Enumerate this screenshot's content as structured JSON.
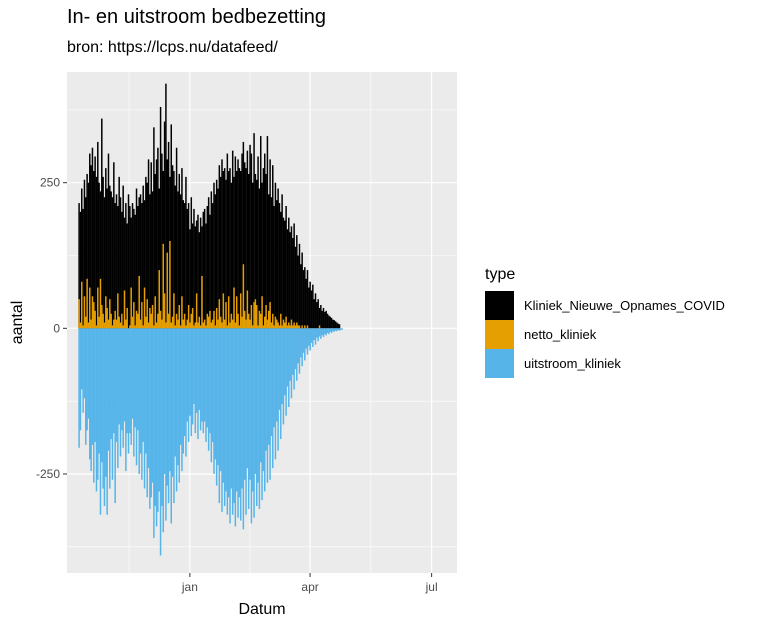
{
  "chart_data": {
    "type": "bar",
    "title": "In- en uitstroom bedbezetting",
    "subtitle": "bron: https://lcps.nu/datafeed/",
    "xlabel": "Datum",
    "ylabel": "aantal",
    "legend_title": "type",
    "legend_position": "right",
    "grid": true,
    "xlim": [
      "2020-10-01",
      "2021-07-20"
    ],
    "ylim": [
      -420,
      440
    ],
    "y_ticks": [
      -250,
      0,
      250
    ],
    "y_tick_labels": [
      "-250",
      "0",
      "250"
    ],
    "x_ticks": [
      "2021-01-01",
      "2021-04-01",
      "2021-07-01"
    ],
    "x_tick_labels": [
      "jan",
      "apr",
      "jul"
    ],
    "colors": {
      "Kliniek_Nieuwe_Opnames_COVID": "#000000",
      "netto_kliniek": "#E69F00",
      "uitstroom_kliniek": "#56B4E9"
    },
    "start_date": "2020-10-10",
    "series": [
      {
        "name": "Kliniek_Nieuwe_Opnames_COVID",
        "values": [
          215,
          200,
          240,
          205,
          255,
          225,
          265,
          250,
          300,
          280,
          310,
          270,
          295,
          260,
          320,
          250,
          235,
          360,
          260,
          225,
          275,
          240,
          300,
          245,
          235,
          225,
          285,
          215,
          230,
          210,
          260,
          225,
          200,
          245,
          190,
          215,
          180,
          230,
          210,
          190,
          215,
          205,
          195,
          240,
          210,
          225,
          230,
          215,
          245,
          220,
          260,
          250,
          290,
          230,
          285,
          235,
          345,
          265,
          290,
          310,
          240,
          380,
          300,
          270,
          355,
          420,
          290,
          320,
          260,
          350,
          280,
          270,
          245,
          310,
          235,
          265,
          230,
          275,
          220,
          215,
          260,
          205,
          215,
          170,
          225,
          180,
          205,
          175,
          185,
          195,
          165,
          190,
          175,
          200,
          205,
          180,
          210,
          225,
          195,
          235,
          215,
          250,
          230,
          255,
          240,
          280,
          260,
          290,
          270,
          275,
          255,
          300,
          270,
          275,
          250,
          305,
          260,
          295,
          270,
          290,
          275,
          270,
          300,
          320,
          285,
          275,
          305,
          265,
          315,
          300,
          250,
          335,
          265,
          255,
          295,
          240,
          330,
          250,
          275,
          300,
          265,
          330,
          230,
          290,
          225,
          280,
          210,
          250,
          220,
          240,
          215,
          200,
          230,
          190,
          185,
          210,
          170,
          190,
          165,
          175,
          155,
          180,
          140,
          160,
          125,
          145,
          110,
          130,
          100,
          105,
          85,
          100,
          70,
          80,
          65,
          75,
          50,
          60,
          45,
          50,
          35,
          40,
          30,
          35,
          28,
          30,
          25,
          22,
          20,
          18,
          15,
          14,
          12,
          10,
          8,
          7
        ]
      },
      {
        "name": "netto_kliniek",
        "values": [
          50,
          10,
          80,
          5,
          55,
          20,
          85,
          10,
          70,
          15,
          55,
          45,
          30,
          5,
          70,
          20,
          85,
          40,
          25,
          10,
          55,
          35,
          15,
          50,
          25,
          5,
          15,
          30,
          15,
          60,
          20,
          10,
          25,
          5,
          65,
          15,
          35,
          0,
          5,
          70,
          20,
          45,
          5,
          30,
          25,
          90,
          15,
          45,
          5,
          70,
          20,
          50,
          10,
          35,
          25,
          40,
          5,
          55,
          10,
          25,
          100,
          30,
          15,
          145,
          60,
          10,
          130,
          25,
          150,
          10,
          20,
          60,
          5,
          25,
          15,
          40,
          5,
          55,
          15,
          25,
          5,
          15,
          40,
          10,
          25,
          35,
          5,
          10,
          60,
          10,
          20,
          5,
          90,
          10,
          15,
          5,
          25,
          20,
          30,
          10,
          15,
          30,
          5,
          35,
          15,
          50,
          20,
          10,
          60,
          15,
          45,
          5,
          55,
          10,
          25,
          15,
          70,
          10,
          55,
          25,
          5,
          60,
          20,
          110,
          30,
          15,
          65,
          25,
          15,
          40,
          5,
          45,
          50,
          40,
          5,
          30,
          25,
          55,
          5,
          20,
          40,
          15,
          30,
          45,
          10,
          25,
          5,
          20,
          15,
          10,
          5,
          25,
          5,
          15,
          10,
          20,
          5,
          10,
          5,
          15,
          5,
          10,
          5,
          10,
          5,
          5,
          0,
          5,
          0,
          5,
          0,
          5,
          0,
          0,
          0,
          0,
          0,
          0,
          0,
          0,
          5,
          0,
          0,
          0,
          0,
          0,
          0,
          0,
          0,
          0,
          0,
          0,
          0,
          0,
          0,
          0,
          0,
          0,
          0,
          0
        ]
      },
      {
        "name": "uitstroom_kliniek",
        "values": [
          -205,
          -175,
          -105,
          -145,
          -120,
          -200,
          -175,
          -155,
          -225,
          -245,
          -200,
          -265,
          -195,
          -280,
          -260,
          -215,
          -320,
          -230,
          -275,
          -305,
          -255,
          -320,
          -210,
          -275,
          -190,
          -260,
          -180,
          -300,
          -195,
          -240,
          -165,
          -220,
          -175,
          -205,
          -160,
          -245,
          -180,
          -215,
          -180,
          -200,
          -155,
          -220,
          -170,
          -235,
          -175,
          -250,
          -215,
          -260,
          -195,
          -275,
          -215,
          -290,
          -240,
          -310,
          -290,
          -265,
          -360,
          -305,
          -340,
          -315,
          -280,
          -390,
          -305,
          -350,
          -250,
          -330,
          -270,
          -300,
          -245,
          -335,
          -255,
          -300,
          -220,
          -280,
          -235,
          -265,
          -200,
          -245,
          -215,
          -185,
          -220,
          -160,
          -195,
          -150,
          -185,
          -165,
          -130,
          -180,
          -145,
          -190,
          -140,
          -175,
          -160,
          -180,
          -160,
          -195,
          -170,
          -210,
          -180,
          -230,
          -195,
          -250,
          -225,
          -270,
          -235,
          -300,
          -245,
          -315,
          -265,
          -305,
          -280,
          -320,
          -290,
          -335,
          -275,
          -320,
          -300,
          -340,
          -280,
          -325,
          -290,
          -330,
          -275,
          -345,
          -260,
          -320,
          -240,
          -310,
          -260,
          -335,
          -280,
          -325,
          -250,
          -305,
          -265,
          -310,
          -230,
          -295,
          -245,
          -280,
          -210,
          -265,
          -200,
          -260,
          -185,
          -240,
          -170,
          -225,
          -160,
          -210,
          -140,
          -190,
          -130,
          -165,
          -115,
          -150,
          -100,
          -135,
          -90,
          -120,
          -80,
          -105,
          -70,
          -90,
          -60,
          -78,
          -50,
          -65,
          -42,
          -55,
          -35,
          -45,
          -30,
          -38,
          -25,
          -32,
          -20,
          -28,
          -16,
          -22,
          -14,
          -18,
          -12,
          -15,
          -10,
          -12,
          -8,
          -10,
          -6,
          -8,
          -5,
          -6,
          -4,
          -5,
          -3,
          -4,
          -3,
          -2
        ]
      }
    ]
  }
}
